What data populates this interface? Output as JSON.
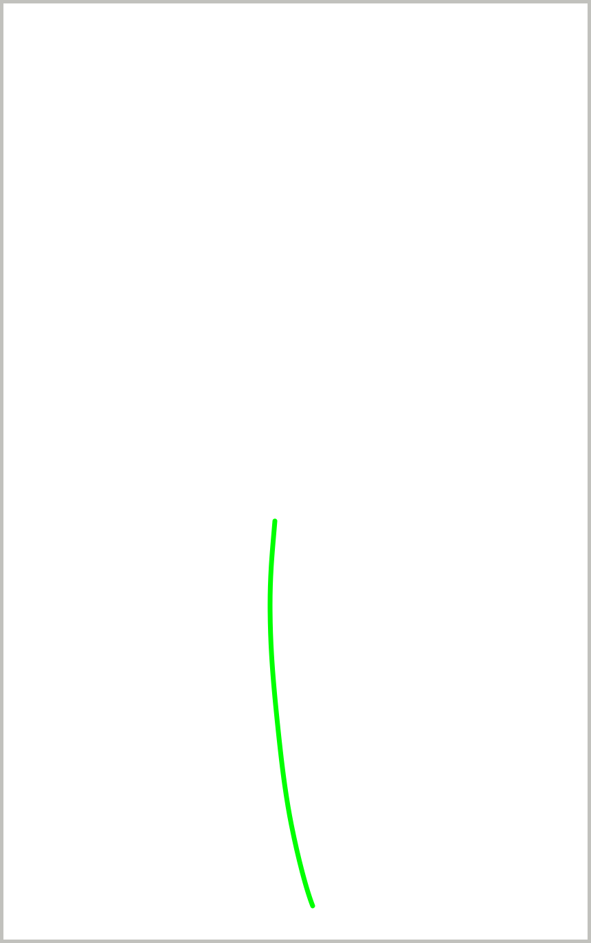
{
  "canvas": {
    "background_color": "#ffffff",
    "border_color": "#c1c1bd",
    "stroke": {
      "color": "#00ff00",
      "shape": "freehand-curve"
    }
  }
}
